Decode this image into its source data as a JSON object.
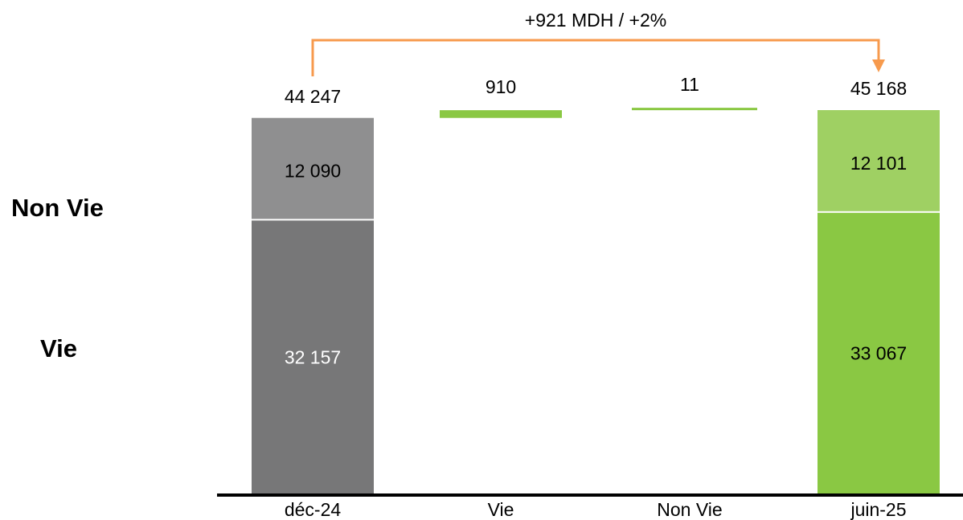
{
  "side_labels": {
    "non_vie": "Non Vie",
    "vie": "Vie"
  },
  "chart_data": {
    "type": "bar",
    "subtype": "waterfall",
    "categories": [
      "déc-24",
      "Vie",
      "Non Vie",
      "juin-25"
    ],
    "totals": [
      {
        "category": "déc-24",
        "total": 44247,
        "total_label": "44 247",
        "segments": [
          {
            "series": "Vie",
            "value": 32157,
            "label": "32 157"
          },
          {
            "series": "Non Vie",
            "value": 12090,
            "label": "12 090"
          }
        ]
      },
      {
        "category": "juin-25",
        "total": 45168,
        "total_label": "45 168",
        "segments": [
          {
            "series": "Vie",
            "value": 33067,
            "label": "33 067"
          },
          {
            "series": "Non Vie",
            "value": 12101,
            "label": "12 101"
          }
        ]
      }
    ],
    "changes": [
      {
        "category": "Vie",
        "value": 910,
        "label": "910"
      },
      {
        "category": "Non Vie",
        "value": 11,
        "label": "11"
      }
    ],
    "annotation": "+921 MDH / +2%",
    "ylim": [
      0,
      45168
    ],
    "grid": false,
    "legend": "none",
    "colors": {
      "start_vie": "#777778",
      "start_nonvie": "#8f8f90",
      "end_vie": "#8ac843",
      "end_nonvie": "#9fd063",
      "change": "#8ac843",
      "arrow": "#f79a4d",
      "axis": "#000000"
    }
  }
}
